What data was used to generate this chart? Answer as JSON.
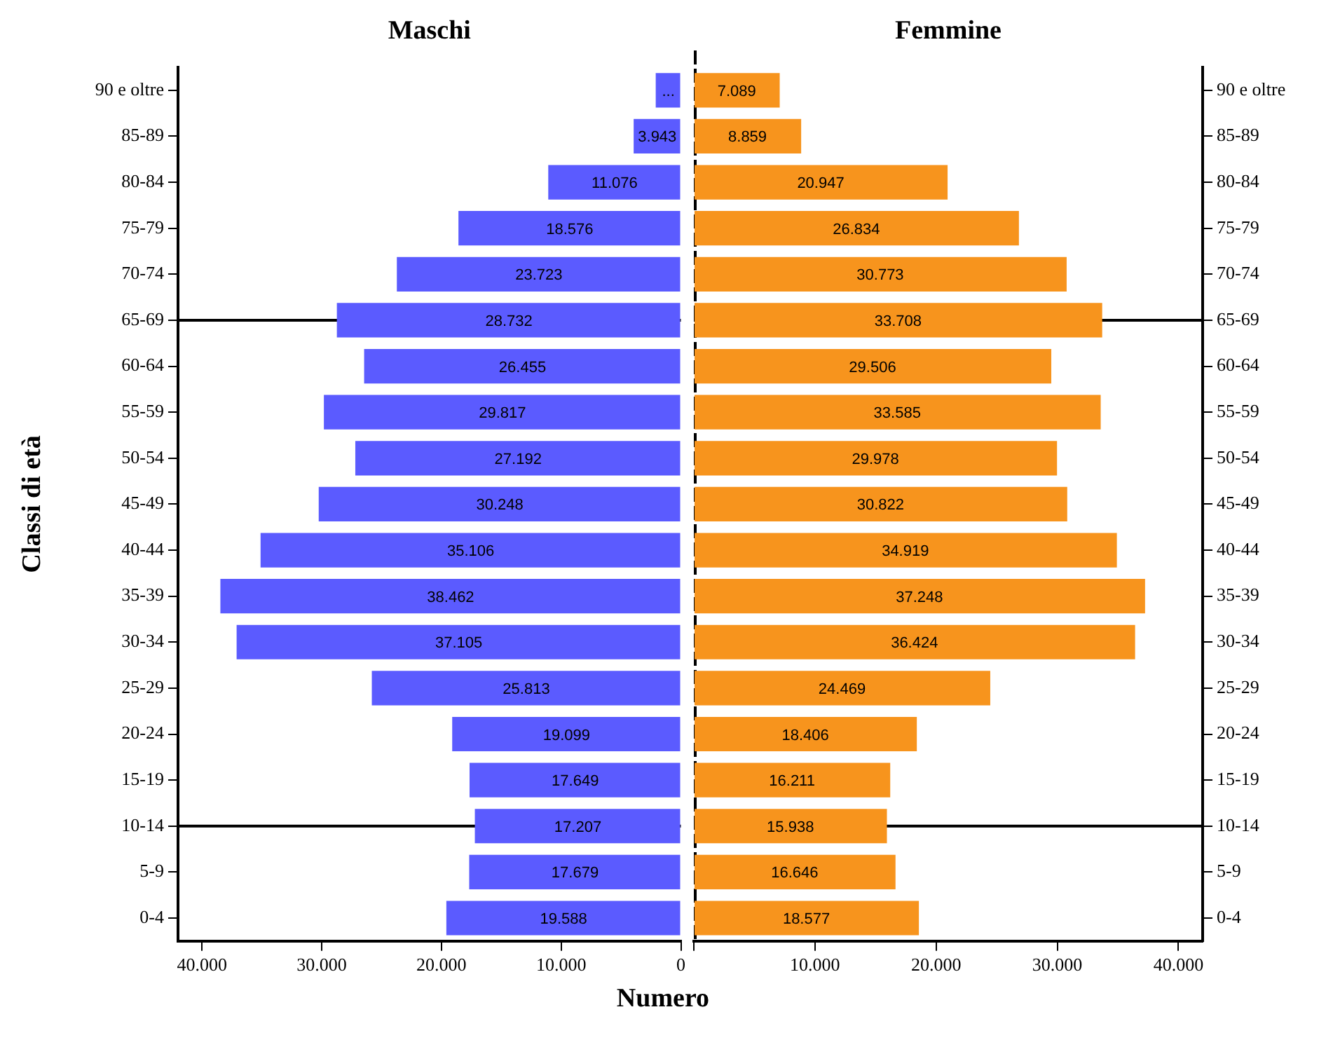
{
  "chart_data": [
    {
      "type": "bar",
      "orientation": "horizontal",
      "title": "Maschi",
      "ylabel": "Classi di età",
      "categories": [
        "90 e oltre",
        "85-89",
        "80-84",
        "75-79",
        "70-74",
        "65-69",
        "60-64",
        "55-59",
        "50-54",
        "45-49",
        "40-44",
        "35-39",
        "30-34",
        "25-29",
        "20-24",
        "15-19",
        "10-14",
        "5-9",
        "0-4"
      ],
      "series": [
        {
          "color": "#5b5bff",
          "values": [
            2100,
            3943,
            11076,
            18576,
            23723,
            28732,
            26455,
            29817,
            27192,
            30248,
            35106,
            38462,
            37105,
            25813,
            19099,
            17649,
            17207,
            17679,
            19588
          ],
          "value_labels": [
            "...",
            "3.943",
            "11.076",
            "18.576",
            "23.723",
            "28.732",
            "26.455",
            "29.817",
            "27.192",
            "30.248",
            "35.106",
            "38.462",
            "37.105",
            "25.813",
            "19.099",
            "17.649",
            "17.207",
            "17.679",
            "19.588"
          ]
        }
      ],
      "xlim": [
        42000,
        0
      ],
      "xticks": [
        {
          "value": 40000,
          "label": "40.000"
        },
        {
          "value": 30000,
          "label": "30.000"
        },
        {
          "value": 20000,
          "label": "20.000"
        },
        {
          "value": 10000,
          "label": "10.000"
        },
        0
      ],
      "ref_lines": [
        {
          "axis": "y",
          "value": "65-69",
          "color": "#000000"
        },
        {
          "axis": "y",
          "value": "10-14",
          "color": "#000000"
        }
      ],
      "grid": false,
      "legend": false
    },
    {
      "type": "bar",
      "orientation": "horizontal",
      "title": "Femmine",
      "xlabel": "Numero",
      "categories": [
        "90 e oltre",
        "85-89",
        "80-84",
        "75-79",
        "70-74",
        "65-69",
        "60-64",
        "55-59",
        "50-54",
        "45-49",
        "40-44",
        "35-39",
        "30-34",
        "25-29",
        "20-24",
        "15-19",
        "10-14",
        "5-9",
        "0-4"
      ],
      "series": [
        {
          "color": "#f7941d",
          "values": [
            7089,
            8859,
            20947,
            26834,
            30773,
            33708,
            29506,
            33585,
            29978,
            30822,
            34919,
            37248,
            36424,
            24469,
            18406,
            16211,
            15938,
            16646,
            18577
          ],
          "value_labels": [
            "7.089",
            "8.859",
            "20.947",
            "26.834",
            "30.773",
            "33.708",
            "29.506",
            "33.585",
            "29.978",
            "30.822",
            "34.919",
            "37.248",
            "36.424",
            "24.469",
            "18.406",
            "16.211",
            "15.938",
            "16.646",
            "18.577"
          ]
        }
      ],
      "xlim": [
        0,
        42000
      ],
      "xticks": [
        {
          "value": 0,
          "label": null
        },
        {
          "value": 10000,
          "label": "10.000"
        },
        {
          "value": 20000,
          "label": "20.000"
        },
        {
          "value": 30000,
          "label": "30.000"
        },
        {
          "value": 40000,
          "label": "40.000"
        }
      ],
      "ref_lines": [
        {
          "axis": "y",
          "value": "65-69",
          "color": "#000000"
        },
        {
          "axis": "y",
          "value": "10-14",
          "color": "#000000"
        },
        {
          "axis": "x",
          "value": 0,
          "color": "#000000",
          "line_style": "dotted"
        }
      ],
      "grid": false,
      "legend": false
    }
  ]
}
